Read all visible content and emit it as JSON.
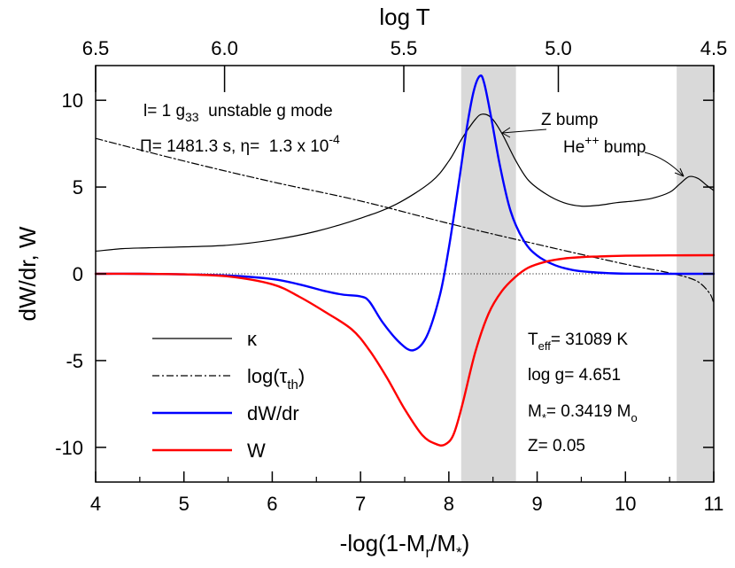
{
  "chart_data": {
    "type": "line",
    "xlabel": "-log(1-M_r/M_*)",
    "ylabel": "dW/dr, W",
    "top_xlabel": "log T",
    "xlim": [
      4,
      11
    ],
    "ylim": [
      -12,
      12
    ],
    "x_ticks": [
      4,
      5,
      6,
      7,
      8,
      9,
      10,
      11
    ],
    "x_tick_labels": [
      "4",
      "5",
      "6",
      "7",
      "8",
      "9",
      "10",
      "11"
    ],
    "y_ticks": [
      -10,
      -5,
      0,
      5,
      10
    ],
    "y_tick_labels": [
      "-10",
      "-5",
      "0",
      "5",
      "10"
    ],
    "top_ticks": [
      {
        "logT": 6.5,
        "x": 4.0,
        "label": "6.5"
      },
      {
        "logT": 6.0,
        "x": 5.46,
        "label": "6.0"
      },
      {
        "logT": 5.5,
        "x": 7.49,
        "label": "5.5"
      },
      {
        "logT": 5.0,
        "x": 9.24,
        "label": "5.0"
      },
      {
        "logT": 4.5,
        "x": 11.0,
        "label": "4.5"
      }
    ],
    "shaded_regions": [
      [
        8.14,
        8.76
      ],
      [
        10.58,
        11.0
      ]
    ],
    "zero_line": true,
    "series": [
      {
        "name": "κ",
        "style": "solid",
        "color": "#000000",
        "x": [
          4.0,
          4.3,
          4.6,
          5.0,
          5.5,
          6.0,
          6.5,
          7.0,
          7.4,
          7.8,
          8.0,
          8.15,
          8.3,
          8.38,
          8.48,
          8.6,
          8.75,
          8.9,
          9.1,
          9.3,
          9.5,
          9.7,
          9.9,
          10.1,
          10.3,
          10.5,
          10.62,
          10.72,
          10.82,
          10.92,
          11.0
        ],
        "values": [
          1.3,
          1.45,
          1.5,
          1.55,
          1.65,
          1.95,
          2.45,
          3.2,
          4.0,
          5.3,
          6.5,
          7.8,
          8.9,
          9.2,
          9.0,
          8.1,
          6.6,
          5.4,
          4.6,
          4.1,
          3.9,
          3.95,
          4.1,
          4.2,
          4.35,
          4.7,
          5.2,
          5.6,
          5.5,
          5.1,
          4.8
        ]
      },
      {
        "name": "log(τ_th)",
        "style": "dashdot",
        "color": "#000000",
        "x": [
          4.0,
          5.0,
          6.0,
          7.0,
          8.0,
          9.0,
          10.0,
          10.5,
          10.8,
          10.95,
          11.0
        ],
        "values": [
          7.8,
          6.5,
          5.3,
          4.2,
          2.9,
          1.7,
          0.55,
          0.05,
          -0.4,
          -1.1,
          -1.7
        ]
      },
      {
        "name": "dW/dr",
        "style": "solid",
        "color": "#0000ff",
        "x": [
          4.0,
          4.5,
          5.0,
          5.5,
          6.0,
          6.3,
          6.6,
          6.8,
          7.0,
          7.1,
          7.25,
          7.45,
          7.6,
          7.75,
          7.9,
          8.0,
          8.1,
          8.2,
          8.28,
          8.35,
          8.4,
          8.48,
          8.58,
          8.7,
          8.85,
          9.0,
          9.2,
          9.4,
          9.6,
          9.8,
          10.0,
          10.5,
          11.0
        ],
        "values": [
          0,
          0,
          -0.03,
          -0.1,
          -0.3,
          -0.6,
          -1.0,
          -1.2,
          -1.3,
          -1.6,
          -2.8,
          -4.0,
          -4.4,
          -3.6,
          -1.2,
          1.5,
          4.8,
          8.3,
          10.5,
          11.4,
          11.0,
          9.0,
          6.2,
          3.6,
          1.9,
          1.05,
          0.5,
          0.22,
          0.1,
          0.04,
          0.01,
          0,
          0
        ]
      },
      {
        "name": "W",
        "style": "solid",
        "color": "#ff0000",
        "x": [
          4.0,
          4.5,
          5.0,
          5.5,
          6.0,
          6.3,
          6.6,
          6.9,
          7.1,
          7.3,
          7.5,
          7.7,
          7.85,
          7.95,
          8.05,
          8.15,
          8.3,
          8.45,
          8.6,
          8.75,
          8.9,
          9.1,
          9.3,
          9.5,
          9.7,
          10.0,
          10.5,
          11.0
        ],
        "values": [
          0,
          0,
          -0.03,
          -0.15,
          -0.6,
          -1.3,
          -2.2,
          -3.2,
          -4.4,
          -6.0,
          -7.8,
          -9.3,
          -9.8,
          -9.85,
          -9.3,
          -7.6,
          -4.5,
          -2.3,
          -1.0,
          -0.2,
          0.35,
          0.7,
          0.88,
          0.96,
          1.0,
          1.04,
          1.06,
          1.07
        ]
      }
    ]
  },
  "annotations": {
    "mode_line1": "l= 1 g",
    "mode_line1_sub": "33",
    "mode_line1_rest": "  unstable g mode",
    "mode_line2": "Π= 1481.3 s, η=  1.3 x 10",
    "mode_line2_sup": "-4",
    "z_bump": "Z bump",
    "he_bump": "He",
    "he_bump_sup": "++",
    "he_bump_rest": " bump"
  },
  "stellar_params": {
    "teff_prefix": "T",
    "teff_sub": "eff",
    "teff_value": "= 31089 K",
    "logg": "log g= 4.651",
    "mass_prefix": "M",
    "mass_sub": "*",
    "mass_value": "= 0.3419 M",
    "mass_unit_sub": "o",
    "z": "Z= 0.05"
  },
  "legend": {
    "kappa": "κ",
    "tau_prefix": "log(τ",
    "tau_sub": "th",
    "tau_suffix": ")",
    "dwdr": "dW/dr",
    "w": "W"
  },
  "axes": {
    "bottom_title_prefix": "-log(1-M",
    "bottom_title_sub1": "r",
    "bottom_title_mid": "/M",
    "bottom_title_sub2": "*",
    "bottom_title_suffix": ")",
    "left_title": "dW/dr, W",
    "top_title": "log T"
  }
}
